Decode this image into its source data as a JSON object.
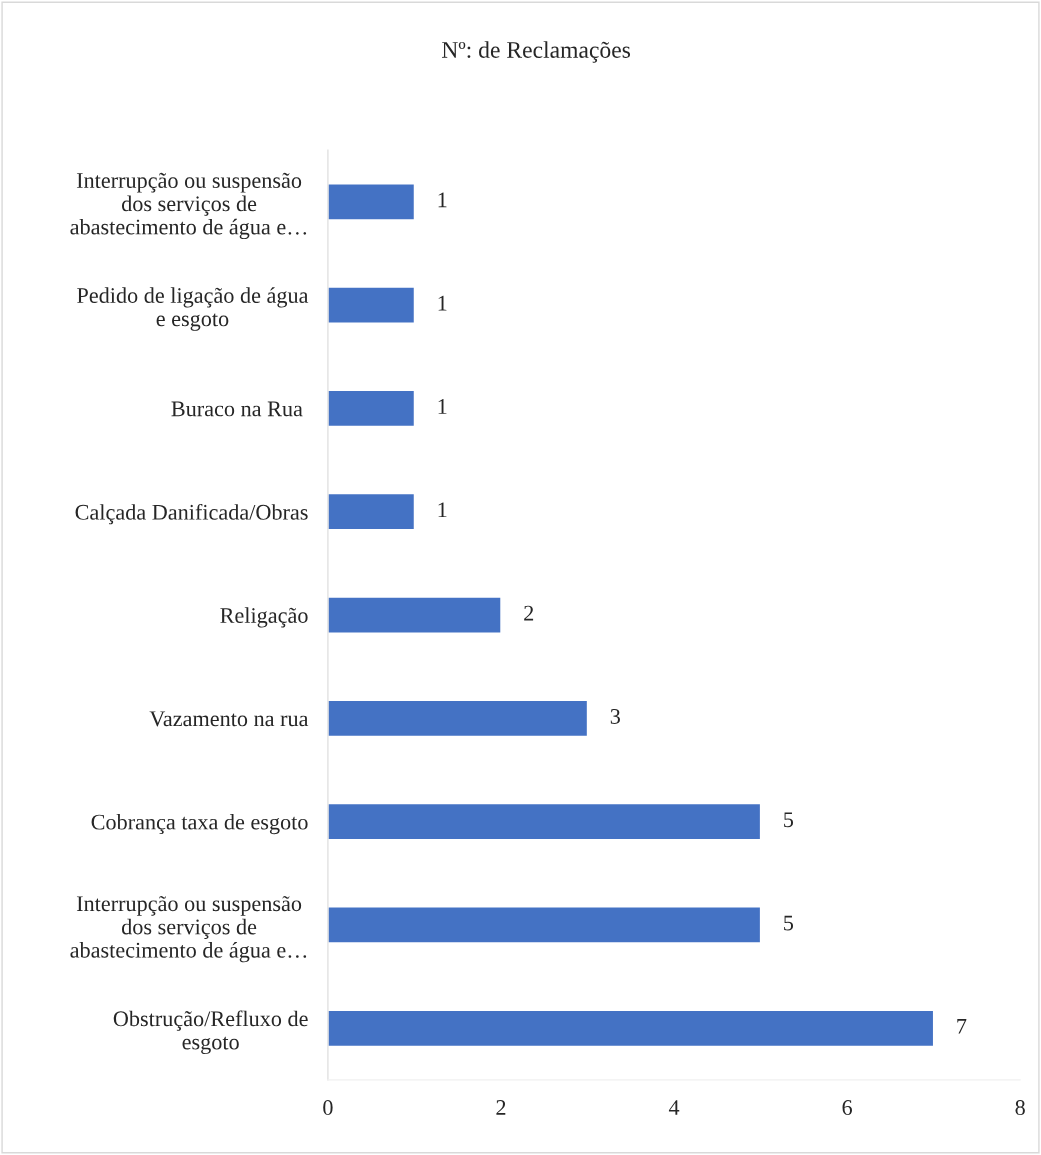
{
  "chart_data": {
    "type": "bar",
    "orientation": "horizontal",
    "title": "Nº: de Reclamações",
    "categories": [
      "Interrupção ou suspensão\ndos serviços de\nabastecimento de água e…",
      "Pedido de ligação de água\ne esgoto",
      "Buraco na Rua ",
      "Calçada Danificada/Obras",
      "Religação",
      "Vazamento na rua",
      "Cobrança taxa de esgoto",
      "Interrupção ou suspensão\ndos serviços de\nabastecimento de água e…",
      "Obstrução/Refluxo de\nesgoto"
    ],
    "values": [
      1,
      1,
      1,
      1,
      2,
      3,
      5,
      5,
      7
    ],
    "color": "#4472c4",
    "xlim": [
      0,
      8
    ],
    "xticks": [
      0,
      2,
      4,
      6,
      8
    ],
    "data_labels": true,
    "grid": false
  }
}
